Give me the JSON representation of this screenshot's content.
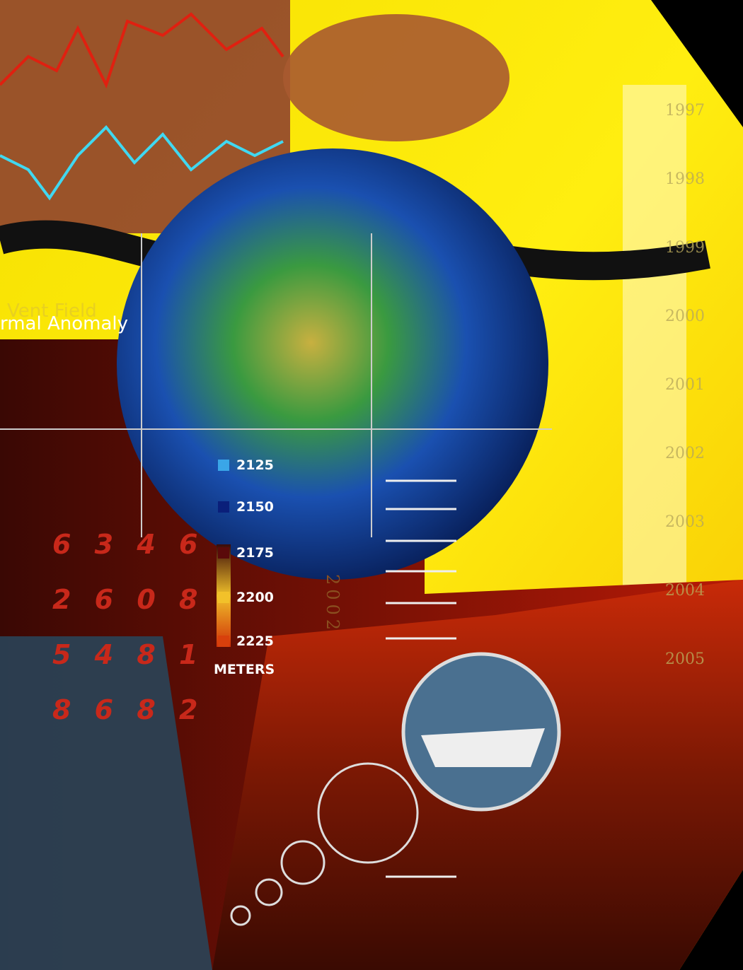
{
  "labels": {
    "vent_field": "Vent Field",
    "anomaly": "rmal Anomaly",
    "units": "METERS",
    "vertical_year": "2002"
  },
  "years": [
    "1997",
    "1998",
    "1999",
    "2000",
    "2001",
    "2002",
    "2003",
    "2004",
    "2005"
  ],
  "legend": [
    {
      "label": "2125",
      "color": "#3aa6e8"
    },
    {
      "label": "2150",
      "color": "#0a1f7a"
    },
    {
      "label": "2175",
      "color": "#5a0a0a"
    },
    {
      "label": "2200",
      "color": "#f2c12a"
    },
    {
      "label": "2225",
      "color": "#d8400c"
    }
  ],
  "red_numbers": [
    "6 3 4 6",
    "2 6 0 8",
    "5 4 8 1",
    "8 6 8 2"
  ]
}
